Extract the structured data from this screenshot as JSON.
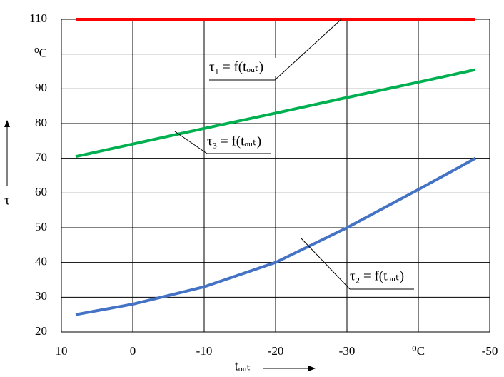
{
  "chart_data": {
    "type": "line",
    "x_label": "tₒᵤₜ",
    "y_label": "τ",
    "x": [
      8,
      0,
      -10,
      -20,
      -30,
      -40,
      -48
    ],
    "series": [
      {
        "name": "τ₁ = f(tₒᵤₜ)",
        "color": "#ff0000",
        "values": [
          110,
          110,
          110,
          110,
          110,
          110,
          110
        ]
      },
      {
        "name": "τ₃ = f(tₒᵤₜ)",
        "color": "#00b050",
        "values": [
          70.5,
          74.1,
          78.6,
          83.0,
          87.5,
          91.9,
          95.5
        ]
      },
      {
        "name": "τ₂ = f(tₒᵤₜ)",
        "color": "#4472c4",
        "values": [
          25,
          28,
          33,
          40,
          50,
          61,
          70
        ]
      }
    ],
    "xlim": [
      10,
      -50
    ],
    "xticks": [
      10,
      0,
      -10,
      -20,
      -30,
      {
        "value": -40,
        "label": "⁰C"
      },
      -50
    ],
    "ylim": [
      20,
      110
    ],
    "yticks": [
      20,
      30,
      40,
      50,
      60,
      70,
      80,
      90,
      {
        "value": 100,
        "label": "⁰C"
      },
      110
    ],
    "grid": true
  }
}
